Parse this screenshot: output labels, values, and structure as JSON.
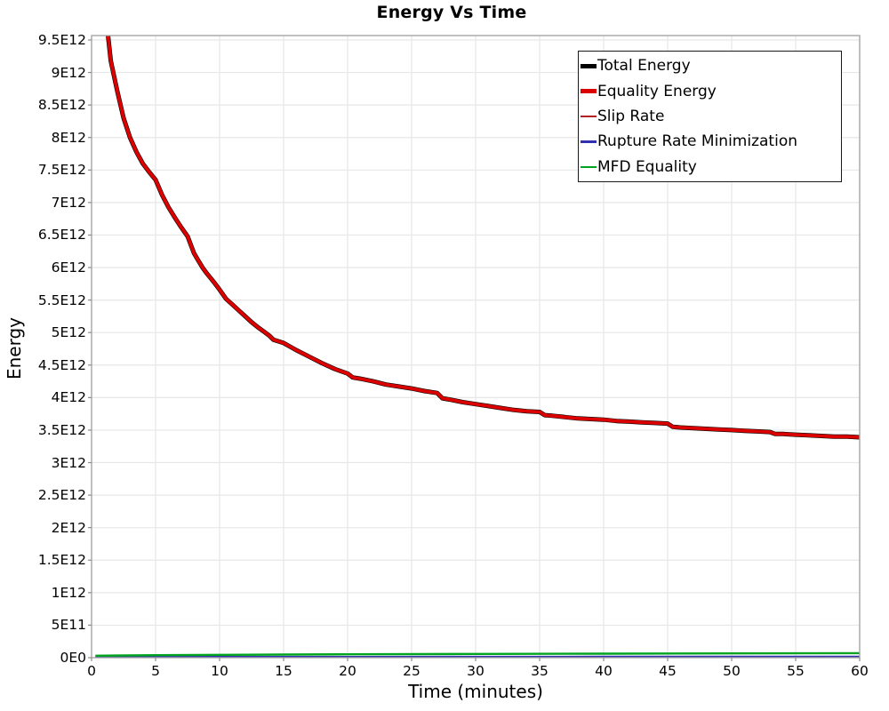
{
  "colors": {
    "background": "#FFFFFF",
    "grid": "#E7E7E7",
    "plot_border": "#A6A6A6",
    "tick_mark": "#8C8C8C",
    "text": "#000000",
    "legend_border": "#1A1A1A"
  },
  "chart_data": {
    "type": "line",
    "title": "Energy Vs Time",
    "xlabel": "Time (minutes)",
    "ylabel": "Energy",
    "grid": true,
    "legend_position": "top-right",
    "xlim": [
      0,
      60
    ],
    "ylim_e12": [
      0,
      9.568
    ],
    "x_ticks": [
      0,
      5,
      10,
      15,
      20,
      25,
      30,
      35,
      40,
      45,
      50,
      55,
      60
    ],
    "x_tick_labels": [
      "0",
      "5",
      "10",
      "15",
      "20",
      "25",
      "30",
      "35",
      "40",
      "45",
      "50",
      "55",
      "60"
    ],
    "y_ticks_e12": [
      0,
      0.5,
      1,
      1.5,
      2,
      2.5,
      3,
      3.5,
      4,
      4.5,
      5,
      5.5,
      6,
      6.5,
      7,
      7.5,
      8,
      8.5,
      9,
      9.5
    ],
    "y_tick_labels": [
      "0E0",
      "5E11",
      "1E12",
      "1.5E12",
      "2E12",
      "2.5E12",
      "3E12",
      "3.5E12",
      "4E12",
      "4.5E12",
      "5E12",
      "5.5E12",
      "6E12",
      "6.5E12",
      "7E12",
      "7.5E12",
      "8E12",
      "8.5E12",
      "9E12",
      "9.5E12"
    ],
    "value_unit": "1E12",
    "curves": {
      "main_curve": [
        [
          1.2,
          9.72
        ],
        [
          1.5,
          9.18
        ],
        [
          2,
          8.72
        ],
        [
          2.5,
          8.3
        ],
        [
          3,
          8.0
        ],
        [
          3.5,
          7.78
        ],
        [
          4,
          7.6
        ],
        [
          4.5,
          7.47
        ],
        [
          5,
          7.35
        ],
        [
          5.5,
          7.12
        ],
        [
          6,
          6.93
        ],
        [
          6.5,
          6.77
        ],
        [
          7,
          6.62
        ],
        [
          7.5,
          6.48
        ],
        [
          8,
          6.22
        ],
        [
          8.3,
          6.12
        ],
        [
          8.7,
          5.99
        ],
        [
          9,
          5.91
        ],
        [
          9.5,
          5.79
        ],
        [
          10,
          5.66
        ],
        [
          10.5,
          5.52
        ],
        [
          11,
          5.43
        ],
        [
          11.5,
          5.34
        ],
        [
          12,
          5.25
        ],
        [
          12.5,
          5.16
        ],
        [
          13,
          5.08
        ],
        [
          13.5,
          5.01
        ],
        [
          13.9,
          4.95
        ],
        [
          14.2,
          4.89
        ],
        [
          15,
          4.84
        ],
        [
          16,
          4.73
        ],
        [
          17,
          4.63
        ],
        [
          18,
          4.53
        ],
        [
          19,
          4.44
        ],
        [
          20,
          4.37
        ],
        [
          20.4,
          4.31
        ],
        [
          21,
          4.29
        ],
        [
          22,
          4.25
        ],
        [
          23,
          4.2
        ],
        [
          24,
          4.17
        ],
        [
          25,
          4.14
        ],
        [
          26,
          4.1
        ],
        [
          27,
          4.07
        ],
        [
          27.4,
          3.99
        ],
        [
          28,
          3.97
        ],
        [
          29,
          3.93
        ],
        [
          30,
          3.9
        ],
        [
          31,
          3.87
        ],
        [
          32,
          3.84
        ],
        [
          33,
          3.81
        ],
        [
          34,
          3.79
        ],
        [
          35,
          3.78
        ],
        [
          35.4,
          3.73
        ],
        [
          36,
          3.72
        ],
        [
          37,
          3.7
        ],
        [
          38,
          3.68
        ],
        [
          39,
          3.67
        ],
        [
          40,
          3.66
        ],
        [
          41,
          3.64
        ],
        [
          42,
          3.63
        ],
        [
          43,
          3.62
        ],
        [
          44,
          3.61
        ],
        [
          45,
          3.6
        ],
        [
          45.4,
          3.55
        ],
        [
          46,
          3.54
        ],
        [
          47,
          3.53
        ],
        [
          48,
          3.52
        ],
        [
          49,
          3.51
        ],
        [
          50,
          3.5
        ],
        [
          51,
          3.49
        ],
        [
          52,
          3.48
        ],
        [
          53,
          3.47
        ],
        [
          53.4,
          3.44
        ],
        [
          54,
          3.44
        ],
        [
          55,
          3.43
        ],
        [
          56,
          3.42
        ],
        [
          57,
          3.41
        ],
        [
          58,
          3.4
        ],
        [
          59,
          3.4
        ],
        [
          60,
          3.39
        ]
      ],
      "rupture_curve": [
        [
          0.3,
          0.012
        ],
        [
          10,
          0.013
        ],
        [
          20,
          0.014
        ],
        [
          30,
          0.015
        ],
        [
          40,
          0.016
        ],
        [
          50,
          0.017
        ],
        [
          60,
          0.018
        ]
      ],
      "mfd_curve": [
        [
          0.3,
          0.03
        ],
        [
          5,
          0.038
        ],
        [
          10,
          0.044
        ],
        [
          15,
          0.048
        ],
        [
          20,
          0.052
        ],
        [
          30,
          0.058
        ],
        [
          40,
          0.062
        ],
        [
          50,
          0.066
        ],
        [
          60,
          0.07
        ]
      ]
    },
    "series": [
      {
        "name": "Total Energy",
        "color": "#000000",
        "width": 5.0,
        "swatch": 5.0,
        "draw_order": 0,
        "points_ref": "main_curve"
      },
      {
        "name": "Equality Energy",
        "color": "#DD0000",
        "width": 3.8,
        "swatch": 4.2,
        "draw_order": 2,
        "points_ref": "main_curve"
      },
      {
        "name": "Slip Rate",
        "color": "#B22222",
        "width": 2.2,
        "swatch": 2.5,
        "draw_order": 1,
        "points_ref": "main_curve"
      },
      {
        "name": "Rupture Rate Minimization",
        "color": "#3030B0",
        "width": 2.0,
        "swatch": 2.5,
        "draw_order": 3,
        "points_ref": "rupture_curve"
      },
      {
        "name": "MFD Equality",
        "color": "#00A41E",
        "width": 2.4,
        "swatch": 2.5,
        "draw_order": 4,
        "points_ref": "mfd_curve"
      }
    ]
  }
}
